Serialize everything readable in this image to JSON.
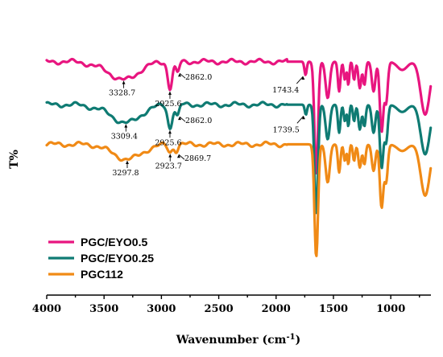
{
  "chart_data": {
    "type": "line",
    "title": "",
    "xlabel_main": "Wavenumber (cm",
    "xlabel_sup": "-1",
    "xlabel_close": ")",
    "ylabel": "T%",
    "xlim": [
      4000,
      650
    ],
    "x_reversed": true,
    "x_ticks": [
      4000,
      3500,
      3000,
      2500,
      2000,
      1500,
      1000
    ],
    "x_tick_labels": [
      "4000",
      "3500",
      "3000",
      "2500",
      "2000",
      "1500",
      "1000"
    ],
    "y_ticks_shown": false,
    "grid": false,
    "legend_position": "bottom-left",
    "series": [
      {
        "name": "PGC/EYO0.5",
        "color": "#e8157f",
        "offset": 3.0,
        "annotations": [
          {
            "x": 3328.7,
            "label": "3328.7"
          },
          {
            "x": 2925.6,
            "label": "2925.6"
          },
          {
            "x": 2862.0,
            "label": "2862.0"
          },
          {
            "x": 1743.4,
            "label": "1743.4"
          }
        ]
      },
      {
        "name": "PGC/EYO0.25",
        "color": "#0f7b73",
        "offset": 1.7,
        "annotations": [
          {
            "x": 3309.4,
            "label": "3309.4"
          },
          {
            "x": 2925.6,
            "label": "2925.6"
          },
          {
            "x": 2862.0,
            "label": "2862.0"
          },
          {
            "x": 1739.5,
            "label": "1739.5"
          }
        ]
      },
      {
        "name": "PGC112",
        "color": "#f08a16",
        "offset": 0.5,
        "annotations": [
          {
            "x": 3297.8,
            "label": "3297.8"
          },
          {
            "x": 2923.7,
            "label": "2923.7"
          },
          {
            "x": 2869.7,
            "label": "2869.7"
          }
        ]
      }
    ]
  }
}
